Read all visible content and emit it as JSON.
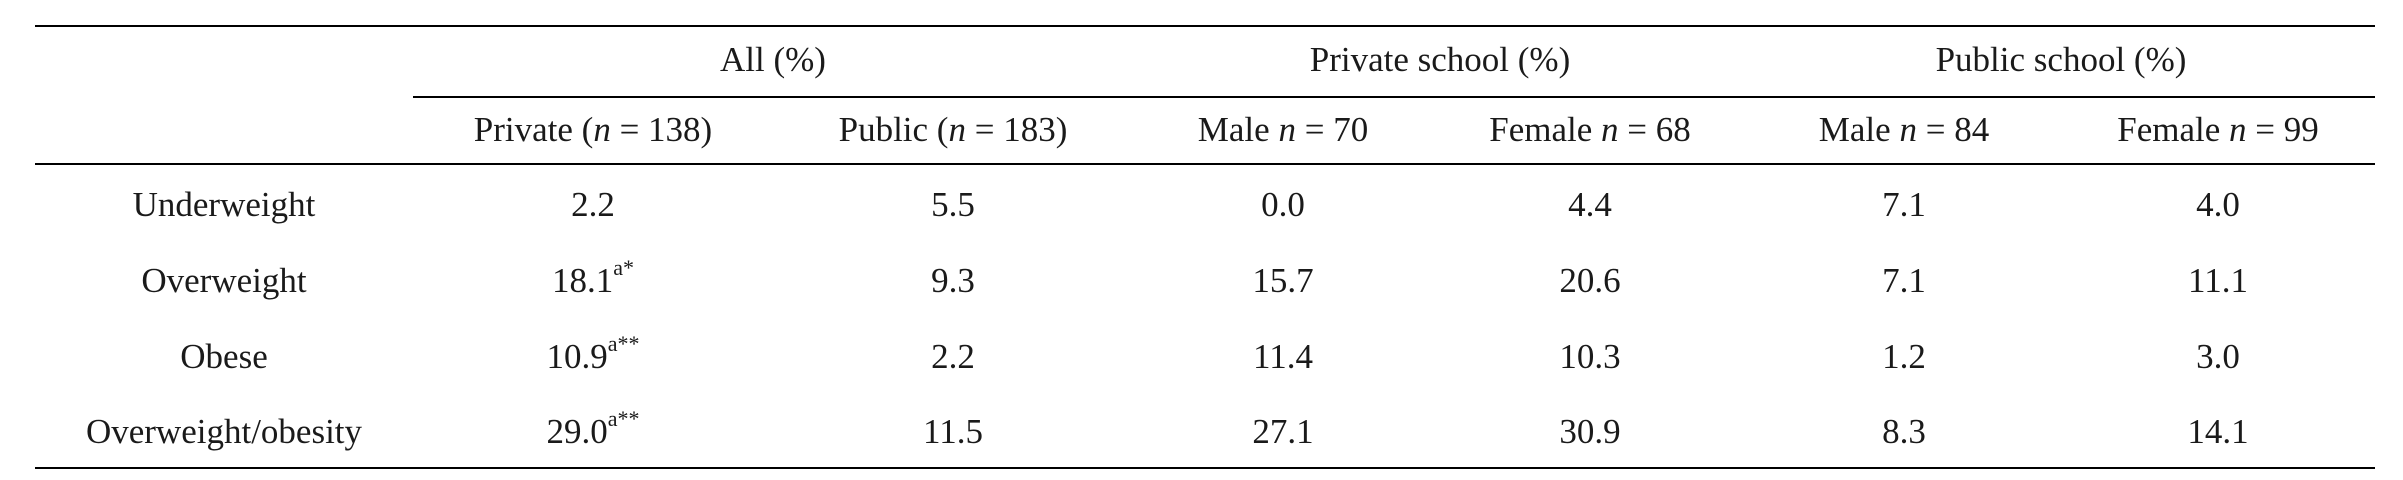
{
  "table": {
    "group_headers": [
      "All (%)",
      "Private school (%)",
      "Public school (%)"
    ],
    "sub_headers": [
      {
        "prefix": "Private (",
        "n": "n",
        "suffix": " = 138)"
      },
      {
        "prefix": "Public (",
        "n": "n",
        "suffix": " = 183)"
      },
      {
        "prefix": "Male ",
        "n": "n",
        "suffix": " = 70"
      },
      {
        "prefix": "Female ",
        "n": "n",
        "suffix": " = 68"
      },
      {
        "prefix": "Male ",
        "n": "n",
        "suffix": " = 84"
      },
      {
        "prefix": "Female ",
        "n": "n",
        "suffix": " = 99"
      }
    ],
    "rows": [
      {
        "label": "Underweight",
        "values": [
          "2.2",
          "5.5",
          "0.0",
          "4.4",
          "7.1",
          "4.0"
        ],
        "first_sup": ""
      },
      {
        "label": "Overweight",
        "values": [
          "18.1",
          "9.3",
          "15.7",
          "20.6",
          "7.1",
          "11.1"
        ],
        "first_sup": "a*"
      },
      {
        "label": "Obese",
        "values": [
          "10.9",
          "2.2",
          "11.4",
          "10.3",
          "1.2",
          "3.0"
        ],
        "first_sup": "a**"
      },
      {
        "label": "Overweight/obesity",
        "values": [
          "29.0",
          "11.5",
          "27.1",
          "30.9",
          "8.3",
          "14.1"
        ],
        "first_sup": "a**"
      }
    ]
  }
}
